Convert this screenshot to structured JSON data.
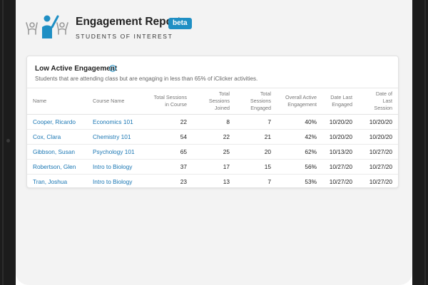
{
  "header": {
    "title": "Engagement Report",
    "badge": "beta",
    "subtitle": "STUDENTS OF INTEREST",
    "logo_icon": "presenter-with-raised-hands-icon"
  },
  "colors": {
    "accent": "#1f8fc4",
    "link": "#1976b3",
    "background": "#f3f3f3"
  },
  "card": {
    "title": "Low Active Engagement",
    "info_icon": "info-icon",
    "description": "Students that are attending class but are engaging in less than 65% of iClicker activities.",
    "columns": [
      {
        "line1": "Name",
        "line2": ""
      },
      {
        "line1": "Course Name",
        "line2": ""
      },
      {
        "line1": "Total Sessions",
        "line2": "in Course"
      },
      {
        "line1": "Total Sessions",
        "line2": "Joined"
      },
      {
        "line1": "Total Sessions",
        "line2": "Engaged"
      },
      {
        "line1": "Overall Active",
        "line2": "Engagement"
      },
      {
        "line1": "Date Last",
        "line2": "Engaged"
      },
      {
        "line1": "Date of",
        "line2": "Last Session"
      }
    ],
    "rows": [
      {
        "name": "Cooper, Ricardo",
        "course": "Economics 101",
        "total": "22",
        "joined": "8",
        "engaged": "7",
        "overall": "40%",
        "last_engaged": "10/20/20",
        "last_session": "10/20/20"
      },
      {
        "name": "Cox, Clara",
        "course": "Chemistry 101",
        "total": "54",
        "joined": "22",
        "engaged": "21",
        "overall": "42%",
        "last_engaged": "10/20/20",
        "last_session": "10/20/20"
      },
      {
        "name": "Gibbson, Susan",
        "course": "Psychology 101",
        "total": "65",
        "joined": "25",
        "engaged": "20",
        "overall": "62%",
        "last_engaged": "10/13/20",
        "last_session": "10/27/20"
      },
      {
        "name": "Robertson, Glen",
        "course": "Intro to Biology",
        "total": "37",
        "joined": "17",
        "engaged": "15",
        "overall": "56%",
        "last_engaged": "10/27/20",
        "last_session": "10/27/20"
      },
      {
        "name": "Tran, Joshua",
        "course": "Intro to Biology",
        "total": "23",
        "joined": "13",
        "engaged": "7",
        "overall": "53%",
        "last_engaged": "10/27/20",
        "last_session": "10/27/20"
      }
    ]
  }
}
